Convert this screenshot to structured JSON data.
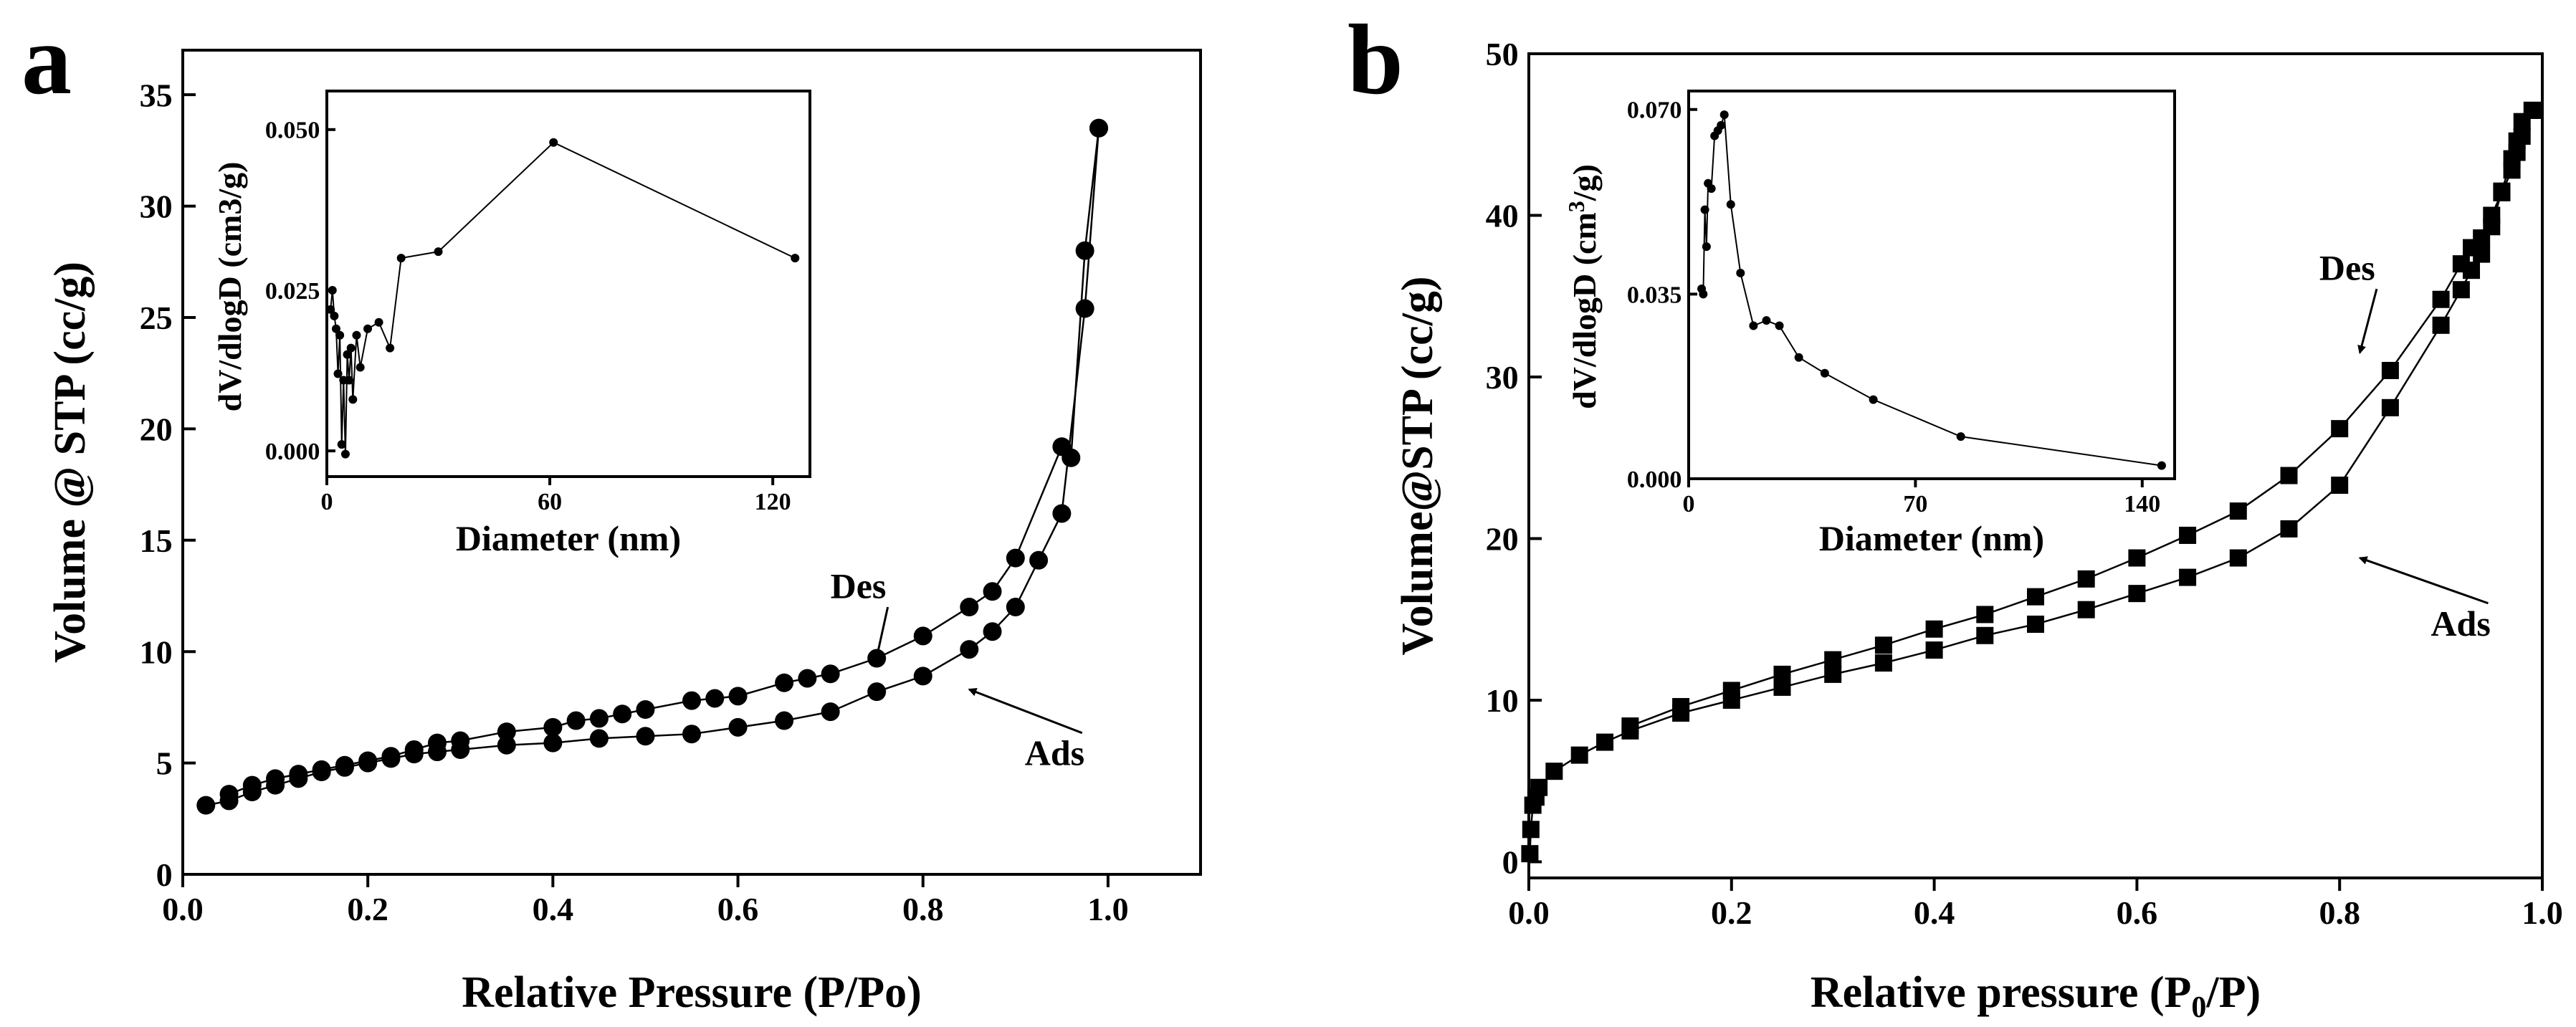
{
  "panel_labels": [
    "a",
    "b"
  ],
  "chart_data": [
    {
      "type": "scatter",
      "panel": "a",
      "xlabel": "Relative Pressure (P/Po)",
      "ylabel": "Volume @ STP (cc/g)",
      "xlim": [
        0,
        1.1
      ],
      "ylim": [
        0,
        37
      ],
      "xticks": [
        0.0,
        0.2,
        0.4,
        0.6,
        0.8,
        1.0
      ],
      "xticklabels": [
        "0.0",
        "0.2",
        "0.4",
        "0.6",
        "0.8",
        "1.0"
      ],
      "yticks": [
        0,
        5,
        10,
        15,
        20,
        25,
        30,
        35
      ],
      "yticklabels": [
        "0",
        "5",
        "10",
        "15",
        "20",
        "25",
        "30",
        "35"
      ],
      "marker": "circle",
      "series": [
        {
          "name": "Ads",
          "x": [
            0.025,
            0.05,
            0.075,
            0.1,
            0.125,
            0.15,
            0.175,
            0.2,
            0.225,
            0.25,
            0.275,
            0.3,
            0.35,
            0.4,
            0.45,
            0.5,
            0.55,
            0.6,
            0.65,
            0.7,
            0.75,
            0.8,
            0.85,
            0.875,
            0.9,
            0.925,
            0.95,
            0.975,
            0.99
          ],
          "y": [
            3.1,
            3.3,
            3.7,
            4.0,
            4.3,
            4.6,
            4.8,
            5.0,
            5.2,
            5.4,
            5.5,
            5.6,
            5.8,
            5.9,
            6.1,
            6.2,
            6.3,
            6.6,
            6.9,
            7.3,
            8.2,
            8.9,
            10.1,
            10.9,
            12.0,
            14.1,
            16.2,
            25.4,
            33.5
          ]
        },
        {
          "name": "Des",
          "x": [
            0.99,
            0.975,
            0.96,
            0.95,
            0.9,
            0.875,
            0.85,
            0.8,
            0.75,
            0.7,
            0.675,
            0.65,
            0.6,
            0.575,
            0.55,
            0.5,
            0.475,
            0.45,
            0.425,
            0.4,
            0.35,
            0.3,
            0.275,
            0.25,
            0.225,
            0.2,
            0.175,
            0.15,
            0.125,
            0.1,
            0.075,
            0.05
          ],
          "y": [
            33.5,
            28.0,
            18.7,
            19.2,
            14.2,
            12.7,
            12.0,
            10.7,
            9.7,
            9.0,
            8.8,
            8.6,
            8.0,
            7.9,
            7.8,
            7.4,
            7.2,
            7.0,
            6.9,
            6.6,
            6.4,
            6.0,
            5.9,
            5.6,
            5.3,
            5.1,
            4.9,
            4.7,
            4.5,
            4.3,
            4.0,
            3.6
          ]
        }
      ],
      "annotations": [
        {
          "text": "Des",
          "x": 0.7,
          "y": 12.4,
          "arrow_to": [
            0.75,
            9.75
          ]
        },
        {
          "text": "Ads",
          "x": 0.91,
          "y": 4.9,
          "arrow_to": [
            0.85,
            8.3
          ]
        }
      ],
      "inset": {
        "type": "line",
        "xlabel": "Diameter (nm)",
        "ylabel": "dV/dlogD (cm3/g)",
        "xlim": [
          0,
          130
        ],
        "ylim": [
          -0.004,
          0.056
        ],
        "xticks": [
          0,
          60,
          120
        ],
        "xticklabels": [
          "0",
          "60",
          "120"
        ],
        "yticks": [
          0.0,
          0.025,
          0.05
        ],
        "yticklabels": [
          "0.000",
          "0.025",
          "0.050"
        ],
        "x": [
          1.0,
          1.5,
          2.0,
          2.5,
          3.0,
          3.5,
          4.0,
          4.5,
          5.0,
          5.5,
          6.0,
          6.5,
          7.0,
          8.0,
          9.0,
          11.0,
          14.0,
          17.0,
          20.0,
          30.0,
          61.0,
          126.0
        ],
        "y": [
          0.022,
          0.025,
          0.021,
          0.019,
          0.012,
          0.018,
          0.001,
          0.011,
          -0.0005,
          0.015,
          0.011,
          0.016,
          0.008,
          0.018,
          0.013,
          0.019,
          0.02,
          0.016,
          0.03,
          0.031,
          0.048,
          0.03
        ]
      }
    },
    {
      "type": "scatter",
      "panel": "b",
      "xlabel": "Relative pressure (P0/P)",
      "xlabel_main": "Relative pressure (P",
      "xlabel_sub": "0",
      "xlabel_tail": "/P)",
      "ylabel": "Volume@STP (cc/g)",
      "xlim": [
        0,
        1.0
      ],
      "ylim": [
        -1,
        50
      ],
      "xticks": [
        0.0,
        0.2,
        0.4,
        0.6,
        0.8,
        1.0
      ],
      "xticklabels": [
        "0.0",
        "0.2",
        "0.4",
        "0.6",
        "0.8",
        "1.0"
      ],
      "yticks": [
        0,
        10,
        20,
        30,
        40,
        50
      ],
      "yticklabels": [
        "0",
        "10",
        "20",
        "30",
        "40",
        "50"
      ],
      "marker": "square",
      "series": [
        {
          "name": "Ads",
          "x": [
            0.001,
            0.002,
            0.004,
            0.007,
            0.01,
            0.025,
            0.05,
            0.075,
            0.1,
            0.15,
            0.2,
            0.25,
            0.3,
            0.35,
            0.4,
            0.45,
            0.5,
            0.55,
            0.6,
            0.65,
            0.7,
            0.75,
            0.8,
            0.85,
            0.9,
            0.92,
            0.93,
            0.94,
            0.95,
            0.96,
            0.97,
            0.975,
            0.98,
            0.99
          ],
          "y": [
            0.5,
            2.0,
            3.5,
            4.0,
            4.6,
            5.6,
            6.6,
            7.4,
            8.1,
            9.2,
            10.0,
            10.8,
            11.6,
            12.3,
            13.1,
            14.0,
            14.7,
            15.6,
            16.6,
            17.6,
            18.8,
            20.6,
            23.3,
            28.1,
            33.2,
            35.4,
            36.6,
            37.6,
            39.3,
            41.5,
            43.5,
            44.6,
            45.8,
            46.5
          ]
        },
        {
          "name": "Des",
          "x": [
            0.99,
            0.98,
            0.975,
            0.97,
            0.96,
            0.95,
            0.94,
            0.93,
            0.92,
            0.9,
            0.85,
            0.8,
            0.75,
            0.7,
            0.65,
            0.6,
            0.55,
            0.5,
            0.45,
            0.4,
            0.35,
            0.3,
            0.25,
            0.2,
            0.15,
            0.1
          ],
          "y": [
            46.5,
            44.9,
            43.9,
            42.8,
            41.4,
            40.0,
            38.6,
            38.0,
            37.0,
            34.8,
            30.4,
            26.8,
            23.9,
            21.7,
            20.2,
            18.8,
            17.5,
            16.4,
            15.3,
            14.4,
            13.4,
            12.5,
            11.6,
            10.6,
            9.6,
            8.4
          ]
        }
      ],
      "annotations": [
        {
          "text": "Des",
          "x": 0.78,
          "y": 36.0,
          "arrow_to": [
            0.82,
            31.5
          ]
        },
        {
          "text": "Ads",
          "x": 0.89,
          "y": 14.0,
          "arrow_to": [
            0.82,
            18.8
          ]
        }
      ],
      "inset": {
        "type": "line",
        "xlabel": "Diameter (nm)",
        "ylabel_main": "dV/dlogD (cm",
        "ylabel_sup": "3",
        "ylabel_tail": "/g)",
        "ylabel": "dV/dlogD (cm3/g)",
        "xlim": [
          0,
          150
        ],
        "ylim": [
          0,
          0.0735
        ],
        "xticks": [
          0,
          70,
          140
        ],
        "xticklabels": [
          "0",
          "70",
          "140"
        ],
        "yticks": [
          0.0,
          0.035,
          0.07
        ],
        "yticklabels": [
          "0.000",
          "0.035",
          "0.070"
        ],
        "x": [
          4.0,
          4.5,
          5.0,
          5.5,
          6.0,
          7.0,
          8.0,
          9.0,
          10.0,
          11.0,
          13.0,
          16.0,
          20.0,
          24.0,
          28.0,
          34.0,
          42.0,
          57.0,
          84.0,
          146.0
        ],
        "y": [
          0.036,
          0.035,
          0.051,
          0.044,
          0.056,
          0.055,
          0.065,
          0.066,
          0.067,
          0.069,
          0.052,
          0.039,
          0.029,
          0.03,
          0.029,
          0.023,
          0.02,
          0.015,
          0.008,
          0.0025
        ]
      }
    }
  ]
}
